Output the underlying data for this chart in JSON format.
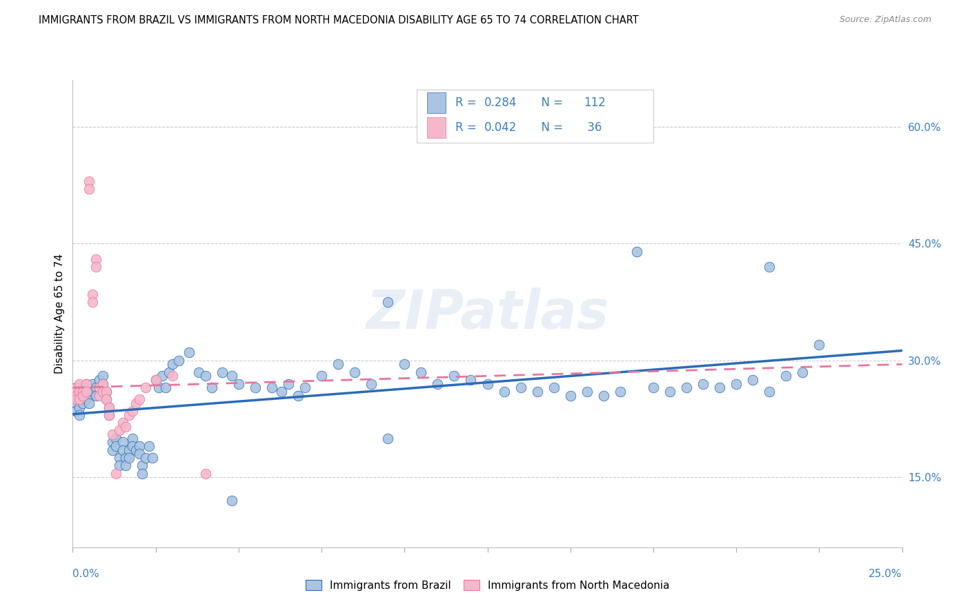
{
  "title": "IMMIGRANTS FROM BRAZIL VS IMMIGRANTS FROM NORTH MACEDONIA DISABILITY AGE 65 TO 74 CORRELATION CHART",
  "source": "Source: ZipAtlas.com",
  "ylabel": "Disability Age 65 to 74",
  "right_yticks": [
    0.15,
    0.3,
    0.45,
    0.6
  ],
  "right_yticklabels": [
    "15.0%",
    "30.0%",
    "45.0%",
    "60.0%"
  ],
  "xlim": [
    0.0,
    0.25
  ],
  "ylim": [
    0.06,
    0.66
  ],
  "brazil_color": "#aac4e2",
  "macedonia_color": "#f5b8cb",
  "brazil_line_color": "#2b6cb8",
  "macedonia_line_color": "#e8759a",
  "watermark": "ZIPatlas",
  "brazil_R": 0.284,
  "brazil_N": 112,
  "macedonia_R": 0.042,
  "macedonia_N": 36,
  "brazil_points": [
    [
      0.001,
      0.245
    ],
    [
      0.001,
      0.255
    ],
    [
      0.001,
      0.265
    ],
    [
      0.001,
      0.235
    ],
    [
      0.002,
      0.25
    ],
    [
      0.002,
      0.24
    ],
    [
      0.002,
      0.26
    ],
    [
      0.002,
      0.23
    ],
    [
      0.003,
      0.255
    ],
    [
      0.003,
      0.245
    ],
    [
      0.003,
      0.265
    ],
    [
      0.004,
      0.26
    ],
    [
      0.004,
      0.25
    ],
    [
      0.004,
      0.27
    ],
    [
      0.005,
      0.255
    ],
    [
      0.005,
      0.245
    ],
    [
      0.006,
      0.27
    ],
    [
      0.006,
      0.26
    ],
    [
      0.007,
      0.265
    ],
    [
      0.007,
      0.255
    ],
    [
      0.008,
      0.275
    ],
    [
      0.008,
      0.265
    ],
    [
      0.009,
      0.28
    ],
    [
      0.009,
      0.27
    ],
    [
      0.01,
      0.26
    ],
    [
      0.01,
      0.25
    ],
    [
      0.011,
      0.24
    ],
    [
      0.011,
      0.23
    ],
    [
      0.012,
      0.195
    ],
    [
      0.012,
      0.185
    ],
    [
      0.013,
      0.2
    ],
    [
      0.013,
      0.19
    ],
    [
      0.014,
      0.175
    ],
    [
      0.014,
      0.165
    ],
    [
      0.015,
      0.195
    ],
    [
      0.015,
      0.185
    ],
    [
      0.016,
      0.175
    ],
    [
      0.016,
      0.165
    ],
    [
      0.017,
      0.185
    ],
    [
      0.017,
      0.175
    ],
    [
      0.018,
      0.2
    ],
    [
      0.018,
      0.19
    ],
    [
      0.019,
      0.185
    ],
    [
      0.02,
      0.19
    ],
    [
      0.02,
      0.18
    ],
    [
      0.021,
      0.165
    ],
    [
      0.021,
      0.155
    ],
    [
      0.022,
      0.175
    ],
    [
      0.023,
      0.19
    ],
    [
      0.024,
      0.175
    ],
    [
      0.025,
      0.275
    ],
    [
      0.026,
      0.265
    ],
    [
      0.027,
      0.28
    ],
    [
      0.028,
      0.265
    ],
    [
      0.029,
      0.285
    ],
    [
      0.03,
      0.295
    ],
    [
      0.032,
      0.3
    ],
    [
      0.035,
      0.31
    ],
    [
      0.038,
      0.285
    ],
    [
      0.04,
      0.28
    ],
    [
      0.042,
      0.265
    ],
    [
      0.045,
      0.285
    ],
    [
      0.048,
      0.28
    ],
    [
      0.05,
      0.27
    ],
    [
      0.055,
      0.265
    ],
    [
      0.06,
      0.265
    ],
    [
      0.063,
      0.26
    ],
    [
      0.065,
      0.27
    ],
    [
      0.068,
      0.255
    ],
    [
      0.07,
      0.265
    ],
    [
      0.075,
      0.28
    ],
    [
      0.08,
      0.295
    ],
    [
      0.085,
      0.285
    ],
    [
      0.09,
      0.27
    ],
    [
      0.095,
      0.375
    ],
    [
      0.1,
      0.295
    ],
    [
      0.105,
      0.285
    ],
    [
      0.11,
      0.27
    ],
    [
      0.115,
      0.28
    ],
    [
      0.12,
      0.275
    ],
    [
      0.125,
      0.27
    ],
    [
      0.13,
      0.26
    ],
    [
      0.135,
      0.265
    ],
    [
      0.14,
      0.26
    ],
    [
      0.145,
      0.265
    ],
    [
      0.15,
      0.255
    ],
    [
      0.155,
      0.26
    ],
    [
      0.16,
      0.255
    ],
    [
      0.165,
      0.26
    ],
    [
      0.17,
      0.44
    ],
    [
      0.175,
      0.265
    ],
    [
      0.18,
      0.26
    ],
    [
      0.185,
      0.265
    ],
    [
      0.19,
      0.27
    ],
    [
      0.195,
      0.265
    ],
    [
      0.2,
      0.27
    ],
    [
      0.205,
      0.275
    ],
    [
      0.21,
      0.42
    ],
    [
      0.215,
      0.28
    ],
    [
      0.22,
      0.285
    ],
    [
      0.225,
      0.32
    ],
    [
      0.048,
      0.12
    ],
    [
      0.095,
      0.2
    ],
    [
      0.21,
      0.26
    ]
  ],
  "macedonia_points": [
    [
      0.001,
      0.265
    ],
    [
      0.001,
      0.26
    ],
    [
      0.001,
      0.255
    ],
    [
      0.001,
      0.25
    ],
    [
      0.002,
      0.27
    ],
    [
      0.002,
      0.26
    ],
    [
      0.002,
      0.25
    ],
    [
      0.003,
      0.26
    ],
    [
      0.003,
      0.255
    ],
    [
      0.004,
      0.27
    ],
    [
      0.004,
      0.26
    ],
    [
      0.005,
      0.53
    ],
    [
      0.005,
      0.52
    ],
    [
      0.006,
      0.385
    ],
    [
      0.006,
      0.375
    ],
    [
      0.007,
      0.43
    ],
    [
      0.007,
      0.42
    ],
    [
      0.008,
      0.265
    ],
    [
      0.008,
      0.255
    ],
    [
      0.009,
      0.27
    ],
    [
      0.009,
      0.26
    ],
    [
      0.01,
      0.26
    ],
    [
      0.01,
      0.25
    ],
    [
      0.011,
      0.24
    ],
    [
      0.011,
      0.23
    ],
    [
      0.012,
      0.205
    ],
    [
      0.013,
      0.155
    ],
    [
      0.014,
      0.21
    ],
    [
      0.015,
      0.22
    ],
    [
      0.016,
      0.215
    ],
    [
      0.017,
      0.23
    ],
    [
      0.018,
      0.235
    ],
    [
      0.019,
      0.245
    ],
    [
      0.02,
      0.25
    ],
    [
      0.022,
      0.265
    ],
    [
      0.025,
      0.275
    ],
    [
      0.03,
      0.28
    ],
    [
      0.04,
      0.155
    ]
  ]
}
